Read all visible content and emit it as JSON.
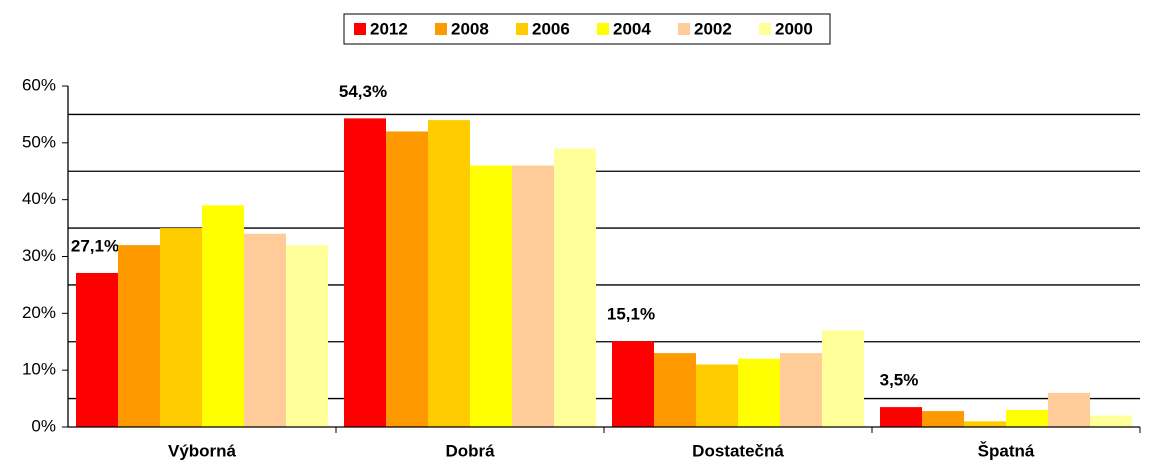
{
  "chart_data": {
    "type": "bar",
    "categories": [
      "Výborná",
      "Dobrá",
      "Dostatečná",
      "Špatná"
    ],
    "series": [
      {
        "name": "2012",
        "color": "#ff0000",
        "values": [
          27.1,
          54.3,
          15.1,
          3.5
        ],
        "value_labels": [
          "27,1%",
          "54,3%",
          "15,1%",
          "3,5%"
        ]
      },
      {
        "name": "2008",
        "color": "#ff9900",
        "values": [
          32,
          52,
          13,
          2.8
        ]
      },
      {
        "name": "2006",
        "color": "#ffcc00",
        "values": [
          35,
          54,
          11,
          1
        ]
      },
      {
        "name": "2004",
        "color": "#ffff00",
        "values": [
          39,
          46,
          12,
          3
        ]
      },
      {
        "name": "2002",
        "color": "#ffcc99",
        "values": [
          34,
          46,
          13,
          6
        ]
      },
      {
        "name": "2000",
        "color": "#ffff99",
        "values": [
          32,
          49,
          17,
          2
        ]
      }
    ],
    "ylim": [
      0,
      60
    ],
    "yticks": [
      {
        "value": 0,
        "label": "0%"
      },
      {
        "value": 10,
        "label": "10%"
      },
      {
        "value": 20,
        "label": "20%"
      },
      {
        "value": 30,
        "label": "30%"
      },
      {
        "value": 40,
        "label": "40%"
      },
      {
        "value": 50,
        "label": "50%"
      },
      {
        "value": 60,
        "label": "60%"
      }
    ],
    "ygrid": [
      5,
      15,
      25,
      35,
      45,
      55
    ],
    "legend": "top"
  }
}
